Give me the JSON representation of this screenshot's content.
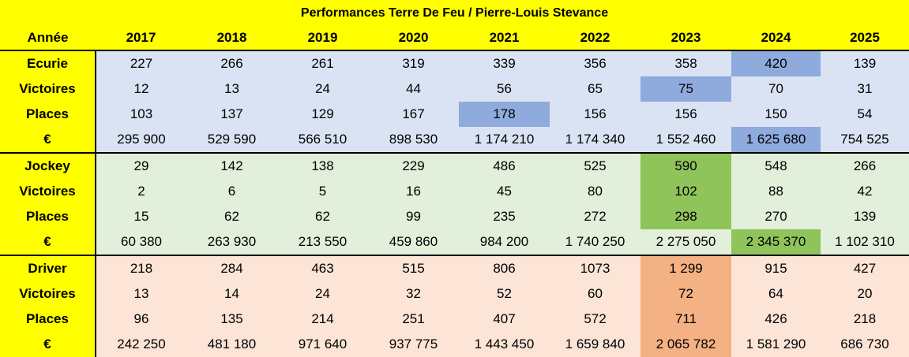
{
  "title": "Performances Terre De Feu / Pierre-Louis Stevance",
  "header": {
    "label": "Année",
    "years": [
      "2017",
      "2018",
      "2019",
      "2020",
      "2021",
      "2022",
      "2023",
      "2024",
      "2025"
    ]
  },
  "colors": {
    "header_yellow": "#ffff00",
    "ecurie_bg": "#dae3f3",
    "ecurie_highlight": "#8faadc",
    "jockey_bg": "#e2efda",
    "jockey_highlight": "#8fc45a",
    "driver_bg": "#fce4d6",
    "driver_highlight": "#f4b183"
  },
  "groups": [
    {
      "name": "ecurie",
      "theme": "blue",
      "rows": [
        {
          "label": "Ecurie",
          "values": [
            "227",
            "266",
            "261",
            "319",
            "339",
            "356",
            "358",
            "420",
            "139"
          ],
          "highlight": [
            7
          ]
        },
        {
          "label": "Victoires",
          "values": [
            "12",
            "13",
            "24",
            "44",
            "56",
            "65",
            "75",
            "70",
            "31"
          ],
          "highlight": [
            6
          ]
        },
        {
          "label": "Places",
          "values": [
            "103",
            "137",
            "129",
            "167",
            "178",
            "156",
            "156",
            "150",
            "54"
          ],
          "highlight": [
            4
          ]
        },
        {
          "label": "€",
          "values": [
            "295 900",
            "529 590",
            "566 510",
            "898 530",
            "1 174 210",
            "1 174 340",
            "1 552 460",
            "1 625 680",
            "754 525"
          ],
          "highlight": [
            7
          ]
        }
      ]
    },
    {
      "name": "jockey",
      "theme": "green",
      "rows": [
        {
          "label": "Jockey",
          "values": [
            "29",
            "142",
            "138",
            "229",
            "486",
            "525",
            "590",
            "548",
            "266"
          ],
          "highlight": [
            6
          ]
        },
        {
          "label": "Victoires",
          "values": [
            "2",
            "6",
            "5",
            "16",
            "45",
            "80",
            "102",
            "88",
            "42"
          ],
          "highlight": [
            6
          ]
        },
        {
          "label": "Places",
          "values": [
            "15",
            "62",
            "62",
            "99",
            "235",
            "272",
            "298",
            "270",
            "139"
          ],
          "highlight": [
            6
          ]
        },
        {
          "label": "€",
          "values": [
            "60 380",
            "263 930",
            "213 550",
            "459 860",
            "984 200",
            "1 740 250",
            "2 275 050",
            "2 345 370",
            "1 102 310"
          ],
          "highlight": [
            7
          ]
        }
      ]
    },
    {
      "name": "driver",
      "theme": "orange",
      "rows": [
        {
          "label": "Driver",
          "values": [
            "218",
            "284",
            "463",
            "515",
            "806",
            "1073",
            "1 299",
            "915",
            "427"
          ],
          "highlight": [
            6
          ]
        },
        {
          "label": "Victoires",
          "values": [
            "13",
            "14",
            "24",
            "32",
            "52",
            "60",
            "72",
            "64",
            "20"
          ],
          "highlight": [
            6
          ]
        },
        {
          "label": "Places",
          "values": [
            "96",
            "135",
            "214",
            "251",
            "407",
            "572",
            "711",
            "426",
            "218"
          ],
          "highlight": [
            6
          ]
        },
        {
          "label": "€",
          "values": [
            "242 250",
            "481 180",
            "971 640",
            "937 775",
            "1 443 450",
            "1 659 840",
            "2 065 782",
            "1 581 290",
            "686 730"
          ],
          "highlight": [
            6
          ]
        }
      ]
    }
  ]
}
